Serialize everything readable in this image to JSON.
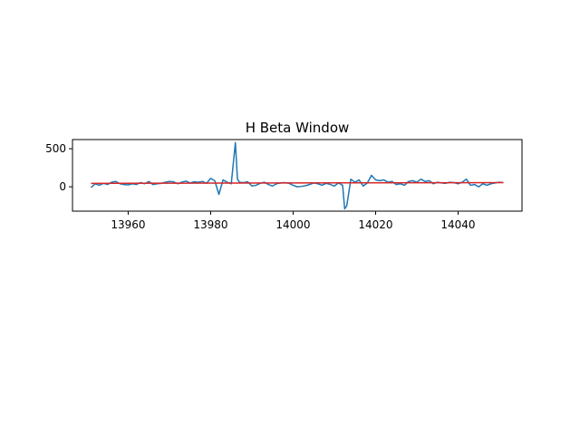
{
  "chart_data": {
    "type": "line",
    "title": "H Beta Window",
    "xlabel": "",
    "ylabel": "",
    "xlim": [
      13946.5,
      14055.5
    ],
    "ylim": [
      -320,
      620
    ],
    "xticks": [
      13960,
      13980,
      14000,
      14020,
      14040
    ],
    "yticks": [
      0,
      500
    ],
    "grid": false,
    "legend": "none",
    "series": [
      {
        "color": "#1f77b4",
        "x": [
          13951,
          13952,
          13953,
          13954,
          13955,
          13956,
          13957,
          13958,
          13959,
          13960,
          13961,
          13962,
          13963,
          13964,
          13965,
          13966,
          13967,
          13968,
          13969,
          13970,
          13971,
          13972,
          13973,
          13974,
          13975,
          13976,
          13977,
          13978,
          13979,
          13980,
          13981,
          13982,
          13983,
          13984,
          13985,
          13986,
          13986.5,
          13987,
          13988,
          13989,
          13990,
          13991,
          13992,
          13993,
          13994,
          13995,
          13996,
          13997,
          13998,
          13999,
          14000,
          14001,
          14002,
          14003,
          14004,
          14005,
          14006,
          14007,
          14008,
          14009,
          14010,
          14011,
          14012,
          14012.5,
          14013,
          14014,
          14015,
          14016,
          14017,
          14018,
          14019,
          14020,
          14021,
          14022,
          14023,
          14024,
          14025,
          14026,
          14027,
          14028,
          14029,
          14030,
          14031,
          14032,
          14033,
          14034,
          14035,
          14036,
          14037,
          14038,
          14039,
          14040,
          14041,
          14042,
          14043,
          14044,
          14045,
          14046,
          14047,
          14048,
          14049,
          14050,
          14051
        ],
        "values": [
          -10,
          40,
          20,
          45,
          30,
          60,
          70,
          40,
          30,
          25,
          40,
          30,
          55,
          40,
          70,
          30,
          40,
          45,
          60,
          70,
          65,
          40,
          60,
          75,
          50,
          65,
          60,
          70,
          45,
          110,
          80,
          -100,
          90,
          60,
          40,
          580,
          100,
          60,
          55,
          65,
          10,
          20,
          45,
          60,
          30,
          10,
          40,
          50,
          55,
          45,
          20,
          0,
          5,
          15,
          30,
          50,
          40,
          20,
          45,
          30,
          10,
          50,
          20,
          -290,
          -250,
          100,
          60,
          90,
          10,
          50,
          150,
          90,
          80,
          90,
          60,
          70,
          30,
          40,
          20,
          70,
          80,
          60,
          100,
          70,
          80,
          40,
          60,
          50,
          45,
          60,
          55,
          40,
          60,
          100,
          20,
          30,
          0,
          40,
          20,
          40,
          50,
          60,
          55
        ]
      },
      {
        "color": "#d62728",
        "x": [
          13951,
          14051
        ],
        "values": [
          45,
          55
        ]
      }
    ]
  }
}
